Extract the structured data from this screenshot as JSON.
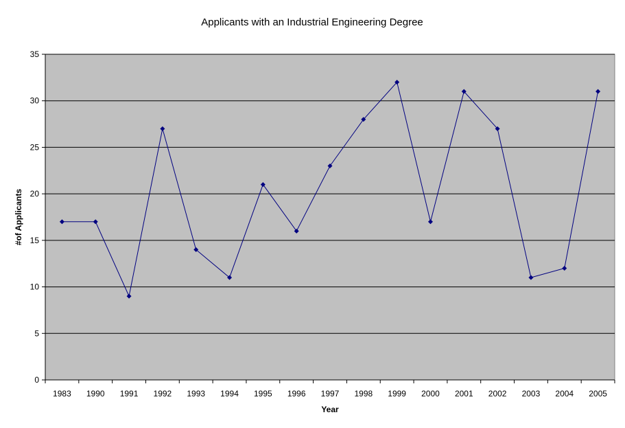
{
  "chart_data": {
    "type": "line",
    "title": "Applicants with an Industrial Engineering Degree",
    "xlabel": "Year",
    "ylabel": "#of Applicants",
    "categories": [
      "1983",
      "1990",
      "1991",
      "1992",
      "1993",
      "1994",
      "1995",
      "1996",
      "1997",
      "1998",
      "1999",
      "2000",
      "2001",
      "2002",
      "2003",
      "2004",
      "2005"
    ],
    "series": [
      {
        "values": [
          17,
          17,
          9,
          27,
          14,
          11,
          21,
          16,
          23,
          28,
          32,
          17,
          31,
          27,
          11,
          12,
          31
        ]
      }
    ],
    "ylim": [
      0,
      35
    ],
    "yticks": [
      "0",
      "5",
      "10",
      "15",
      "20",
      "25",
      "30",
      "35"
    ],
    "grid": "horizontal",
    "legend": "none",
    "colors": {
      "plot_background": "#c0c0c0",
      "line": "#000080",
      "marker": "#000080",
      "gridline": "#000000"
    }
  }
}
